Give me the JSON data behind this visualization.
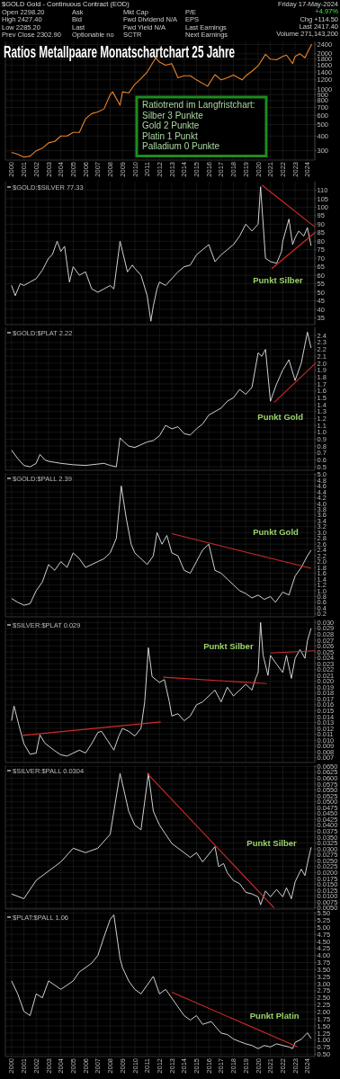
{
  "chart_data": [
    {
      "type": "other",
      "title": "$GOLD Gold - Continuous Contract (EOD)",
      "annotations": [
        "Open 2298.20",
        "High 2427.40",
        "Low 2285.20",
        "Prev Close 2302.90",
        "Ask",
        "Bid",
        "Last",
        "Optionable no",
        "Mkt Cap",
        "Fwd Dividend N/A",
        "Fwd Yield N/A",
        "SCTR",
        "P/E",
        "EPS",
        "Last Earnings",
        "Next Earnings",
        "Friday 17-May-2024",
        "+4.97%",
        "Chg +114.50",
        "Last 2417.40",
        "Volume 271,143,200"
      ]
    },
    {
      "type": "line",
      "title": "Ratios Metallpaare Monatschartchart 25 Jahre",
      "log": true,
      "grid": true,
      "xlim": [
        1999.5,
        2024.6
      ],
      "xticks": [
        2000,
        2001,
        2002,
        2003,
        2004,
        2005,
        2006,
        2007,
        2008,
        2009,
        2010,
        2011,
        2012,
        2013,
        2014,
        2015,
        2016,
        2017,
        2018,
        2019,
        2020,
        2021,
        2022,
        2023,
        2024
      ],
      "ylim": [
        250,
        2550
      ],
      "yticks": [
        300,
        400,
        500,
        600,
        700,
        800,
        900,
        1000,
        1200,
        1400,
        1600,
        1800,
        2000,
        2400
      ],
      "series": [
        {
          "color": "#e8842c",
          "x": [
            2000,
            2000.5,
            2001,
            2001.5,
            2002,
            2002.5,
            2003,
            2003.5,
            2004,
            2004.5,
            2005,
            2005.5,
            2006,
            2006.5,
            2007,
            2007.5,
            2008,
            2008.2,
            2008.8,
            2009,
            2009.5,
            2010,
            2010.5,
            2011,
            2011.7,
            2012,
            2012.5,
            2013,
            2013.5,
            2014,
            2014.5,
            2015,
            2015.9,
            2016.5,
            2017,
            2017.5,
            2018,
            2018.7,
            2019,
            2019.5,
            2020,
            2020.6,
            2021,
            2021.5,
            2022,
            2022.3,
            2022.8,
            2023,
            2023.4,
            2023.8,
            2024,
            2024.35
          ],
          "values": [
            290,
            280,
            265,
            270,
            300,
            315,
            350,
            360,
            400,
            400,
            430,
            430,
            560,
            620,
            640,
            680,
            900,
            950,
            730,
            950,
            930,
            1100,
            1230,
            1400,
            1850,
            1700,
            1600,
            1650,
            1250,
            1300,
            1300,
            1200,
            1060,
            1330,
            1200,
            1250,
            1320,
            1200,
            1300,
            1420,
            1580,
            1980,
            1800,
            1780,
            1900,
            1950,
            1650,
            1900,
            2000,
            1850,
            2050,
            2417
          ]
        }
      ],
      "annotations": [
        "Ratiotrend im Langfristchart:",
        "Silber 3 Punkte",
        "Gold 2 Punkte",
        "Platin 1 Punkt",
        "Palladium 0 Punkte"
      ]
    },
    {
      "type": "line",
      "grid": true,
      "tick_labels": "y",
      "legend": "top left",
      "xlim": [
        1999.5,
        2024.6
      ],
      "xticks": [
        2000,
        2001,
        2002,
        2003,
        2004,
        2005,
        2006,
        2007,
        2008,
        2009,
        2010,
        2011,
        2012,
        2013,
        2014,
        2015,
        2016,
        2017,
        2018,
        2019,
        2020,
        2021,
        2022,
        2023,
        2024
      ],
      "ylim": [
        31,
        115
      ],
      "yticks": [
        35,
        40,
        45,
        50,
        55,
        60,
        65,
        70,
        75,
        80,
        85,
        90,
        95,
        100,
        105,
        110
      ],
      "series": [
        {
          "name": "$GOLD:$SILVER 77.33",
          "color": "#e6e6e6",
          "x": [
            2000,
            2000.3,
            2000.7,
            2001,
            2001.5,
            2002,
            2002.5,
            2003,
            2003.3,
            2003.7,
            2004,
            2004.3,
            2004.7,
            2005,
            2005.5,
            2006,
            2006.5,
            2007,
            2007.5,
            2008,
            2008.3,
            2008.8,
            2009,
            2009.4,
            2009.8,
            2010,
            2010.5,
            2011,
            2011.3,
            2011.5,
            2011.8,
            2012,
            2012.5,
            2013,
            2013.5,
            2014,
            2014.5,
            2015,
            2015.5,
            2016,
            2016.5,
            2017,
            2017.5,
            2018,
            2018.5,
            2019,
            2019.5,
            2020,
            2020.2,
            2020.6,
            2021,
            2021.5,
            2021.9,
            2022,
            2022.5,
            2022.8,
            2023,
            2023.3,
            2023.7,
            2024,
            2024.3
          ],
          "values": [
            54,
            48,
            55,
            54,
            56,
            58,
            63,
            70,
            72,
            80,
            74,
            77,
            56,
            65,
            60,
            62,
            52,
            50,
            52,
            54,
            52,
            80,
            74,
            62,
            66,
            64,
            60,
            48,
            33,
            42,
            52,
            56,
            54,
            58,
            62,
            65,
            66,
            72,
            75,
            78,
            68,
            72,
            75,
            78,
            83,
            90,
            86,
            90,
            112,
            70,
            68,
            67,
            74,
            80,
            93,
            78,
            82,
            86,
            83,
            88,
            77.33
          ]
        },
        {
          "type": "line",
          "color": "#d22b2b",
          "x": [
            2020.3,
            2024.6
          ],
          "values": [
            113,
            88.4
          ]
        },
        {
          "type": "line",
          "color": "#d22b2b",
          "x": [
            2021.1,
            2024.6
          ],
          "values": [
            63.9,
            85
          ]
        }
      ],
      "annotations": [
        "Punkt Silber"
      ]
    },
    {
      "type": "line",
      "grid": true,
      "tick_labels": "y",
      "legend": "top left",
      "xlim": [
        1999.5,
        2024.6
      ],
      "xticks": [
        2000,
        2001,
        2002,
        2003,
        2004,
        2005,
        2006,
        2007,
        2008,
        2009,
        2010,
        2011,
        2012,
        2013,
        2014,
        2015,
        2016,
        2017,
        2018,
        2019,
        2020,
        2021,
        2022,
        2023,
        2024
      ],
      "ylim": [
        0.45,
        2.52
      ],
      "yticks": [
        0.5,
        0.6,
        0.7,
        0.8,
        0.9,
        {
          "value": 1,
          "label": "1.0"
        },
        1.1,
        1.2,
        1.3,
        1.4,
        1.5,
        1.6,
        1.7,
        1.8,
        1.9,
        {
          "value": 2,
          "label": "2.0"
        },
        2.1,
        2.2,
        2.3,
        2.4
      ],
      "series": [
        {
          "name": "$GOLD:$PLAT 2.22",
          "color": "#e6e6e6",
          "x": [
            2000,
            2000.5,
            2001,
            2001.5,
            2002,
            2002.3,
            2002.7,
            2003,
            2004,
            2005,
            2006,
            2007,
            2007.5,
            2008,
            2008.5,
            2008.8,
            2009,
            2009.5,
            2010,
            2010.5,
            2011,
            2011.5,
            2012,
            2012.5,
            2013,
            2013.5,
            2014,
            2014.5,
            2015,
            2015.5,
            2016,
            2016.5,
            2017,
            2017.5,
            2018,
            2018.5,
            2019,
            2019.5,
            2020,
            2020.3,
            2020.6,
            2021,
            2021.5,
            2022,
            2022.5,
            2023,
            2023.5,
            2024,
            2024.3
          ],
          "values": [
            0.74,
            0.62,
            0.52,
            0.5,
            0.55,
            0.68,
            0.6,
            0.58,
            0.55,
            0.53,
            0.52,
            0.54,
            0.55,
            0.52,
            0.5,
            0.92,
            0.88,
            0.8,
            0.78,
            0.82,
            0.86,
            0.88,
            0.95,
            1.1,
            1.05,
            1.08,
            0.98,
            0.96,
            1.05,
            1.12,
            1.25,
            1.3,
            1.35,
            1.45,
            1.5,
            1.62,
            1.55,
            1.65,
            2.15,
            2.1,
            2.2,
            1.45,
            1.7,
            1.9,
            2.05,
            1.75,
            2.0,
            2.45,
            2.22
          ]
        },
        {
          "type": "line",
          "color": "#d22b2b",
          "x": [
            2021.3,
            2024.6
          ],
          "values": [
            1.43,
            1.99
          ]
        }
      ],
      "annotations": [
        "Punkt Gold"
      ]
    },
    {
      "type": "line",
      "grid": true,
      "tick_labels": "y",
      "legend": "top left",
      "xlim": [
        1999.5,
        2024.6
      ],
      "xticks": [
        2000,
        2001,
        2002,
        2003,
        2004,
        2005,
        2006,
        2007,
        2008,
        2009,
        2010,
        2011,
        2012,
        2013,
        2014,
        2015,
        2016,
        2017,
        2018,
        2019,
        2020,
        2021,
        2022,
        2023,
        2024
      ],
      "ylim": [
        0.1,
        5.05
      ],
      "yticks": [
        0.2,
        0.4,
        0.6,
        0.8,
        {
          "value": 1,
          "label": "1.0"
        },
        1.2,
        1.4,
        1.6,
        1.8,
        {
          "value": 2,
          "label": "2.0"
        },
        2.2,
        2.4,
        2.6,
        2.8,
        {
          "value": 3,
          "label": "3.0"
        },
        3.2,
        3.4,
        3.6,
        3.8,
        {
          "value": 4,
          "label": "4.0"
        },
        4.2,
        4.4,
        4.6,
        4.8,
        {
          "value": 5,
          "label": "5.0"
        }
      ],
      "series": [
        {
          "name": "$GOLD:$PALL 2.39",
          "color": "#e6e6e6",
          "x": [
            2000,
            2000.5,
            2001,
            2001.5,
            2002,
            2002.5,
            2003,
            2003.5,
            2004,
            2004.5,
            2005,
            2005.5,
            2006,
            2006.5,
            2007,
            2007.5,
            2008,
            2008.5,
            2008.9,
            2009.3,
            2009.7,
            2010,
            2010.5,
            2011,
            2011.5,
            2011.8,
            2012.2,
            2012.6,
            2013,
            2013.5,
            2014,
            2014.5,
            2015,
            2015.5,
            2016,
            2016.5,
            2017,
            2017.5,
            2018,
            2018.5,
            2019,
            2019.5,
            2020,
            2020.5,
            2021,
            2021.4,
            2022,
            2022.5,
            2023,
            2023.5,
            2024,
            2024.3
          ],
          "values": [
            0.73,
            0.6,
            0.5,
            0.55,
            1.0,
            1.3,
            1.9,
            1.7,
            2.0,
            1.8,
            2.3,
            2.1,
            1.8,
            1.9,
            2.0,
            2.1,
            2.3,
            2.8,
            4.6,
            3.5,
            2.6,
            2.3,
            2.1,
            1.9,
            2.2,
            3.0,
            2.6,
            2.9,
            2.3,
            2.2,
            1.7,
            1.6,
            2.0,
            2.4,
            2.6,
            1.7,
            1.6,
            1.4,
            1.2,
            1.0,
            0.9,
            0.75,
            0.85,
            0.7,
            0.8,
            0.6,
            0.95,
            0.85,
            1.5,
            1.8,
            2.2,
            2.39
          ]
        },
        {
          "type": "line",
          "color": "#d22b2b",
          "x": [
            2013.0,
            2024.3
          ],
          "values": [
            2.96,
            1.77
          ]
        }
      ],
      "annotations": [
        "Punkt Gold"
      ]
    },
    {
      "type": "line",
      "grid": true,
      "tick_labels": "y",
      "legend": "top left",
      "xlim": [
        1999.5,
        2024.6
      ],
      "xticks": [
        2000,
        2001,
        2002,
        2003,
        2004,
        2005,
        2006,
        2007,
        2008,
        2009,
        2010,
        2011,
        2012,
        2013,
        2014,
        2015,
        2016,
        2017,
        2018,
        2019,
        2020,
        2021,
        2022,
        2023,
        2024
      ],
      "ylim": [
        0.0062,
        0.0305
      ],
      "yticks": [
        {
          "value": 0.007,
          "label": "0.007"
        },
        {
          "value": 0.008,
          "label": "0.008"
        },
        {
          "value": 0.009,
          "label": "0.009"
        },
        {
          "value": 0.01,
          "label": "0.010"
        },
        {
          "value": 0.011,
          "label": "0.011"
        },
        {
          "value": 0.012,
          "label": "0.012"
        },
        {
          "value": 0.013,
          "label": "0.013"
        },
        {
          "value": 0.014,
          "label": "0.014"
        },
        {
          "value": 0.015,
          "label": "0.015"
        },
        {
          "value": 0.016,
          "label": "0.016"
        },
        {
          "value": 0.017,
          "label": "0.017"
        },
        {
          "value": 0.018,
          "label": "0.018"
        },
        {
          "value": 0.019,
          "label": "0.019"
        },
        {
          "value": 0.02,
          "label": "0.020"
        },
        {
          "value": 0.021,
          "label": "0.021"
        },
        {
          "value": 0.022,
          "label": "0.022"
        },
        {
          "value": 0.023,
          "label": "0.023"
        },
        {
          "value": 0.024,
          "label": "0.024"
        },
        {
          "value": 0.025,
          "label": "0.025"
        },
        {
          "value": 0.026,
          "label": "0.026"
        },
        {
          "value": 0.027,
          "label": "0.027"
        },
        {
          "value": 0.028,
          "label": "0.028"
        },
        {
          "value": 0.029,
          "label": "0.029"
        },
        {
          "value": 0.03,
          "label": "0.030"
        }
      ],
      "series": [
        {
          "name": "$SILVER:$PLAT 0.029",
          "color": "#e6e6e6",
          "x": [
            2000,
            2000.2,
            2000.6,
            2001,
            2001.5,
            2002,
            2002.3,
            2002.7,
            2003,
            2003.5,
            2004,
            2004.5,
            2005,
            2005.5,
            2006,
            2006.5,
            2007,
            2007.3,
            2007.8,
            2008.3,
            2008.7,
            2009,
            2009.5,
            2010,
            2010.5,
            2010.8,
            2011.1,
            2011.4,
            2011.7,
            2012,
            2012.4,
            2012.8,
            2013,
            2013.5,
            2014,
            2014.5,
            2015,
            2015.5,
            2016,
            2016.5,
            2017,
            2017.5,
            2018,
            2018.5,
            2019,
            2019.5,
            2019.8,
            2020,
            2020.2,
            2020.4,
            2020.8,
            2021,
            2021.5,
            2022,
            2022.3,
            2022.7,
            2023,
            2023.4,
            2023.8,
            2024,
            2024.3
          ],
          "values": [
            0.0133,
            0.0158,
            0.0125,
            0.0094,
            0.0076,
            0.0078,
            0.0109,
            0.0095,
            0.009,
            0.0082,
            0.0075,
            0.0073,
            0.0078,
            0.0083,
            0.0078,
            0.0094,
            0.0113,
            0.0115,
            0.0099,
            0.0083,
            0.0107,
            0.012,
            0.0115,
            0.0107,
            0.012,
            0.0165,
            0.0257,
            0.0208,
            0.0203,
            0.0198,
            0.0203,
            0.0165,
            0.0141,
            0.0145,
            0.0133,
            0.0141,
            0.016,
            0.0165,
            0.0175,
            0.0185,
            0.0165,
            0.019,
            0.0175,
            0.0185,
            0.0195,
            0.0185,
            0.0205,
            0.0215,
            0.03,
            0.0245,
            0.021,
            0.0244,
            0.0229,
            0.0215,
            0.0244,
            0.0205,
            0.0239,
            0.0254,
            0.0239,
            0.0269,
            0.029
          ]
        },
        {
          "type": "line",
          "color": "#d22b2b",
          "x": [
            2000.9,
            2012.1
          ],
          "values": [
            0.0108,
            0.0131
          ]
        },
        {
          "type": "line",
          "color": "#d22b2b",
          "x": [
            2012.3,
            2020.7
          ],
          "values": [
            0.0207,
            0.0196
          ]
        },
        {
          "type": "line",
          "color": "#d22b2b",
          "x": [
            2021.0,
            2024.6
          ],
          "values": [
            0.0248,
            0.0252
          ]
        }
      ],
      "annotations": [
        "Punkt Silber"
      ]
    },
    {
      "type": "line",
      "grid": true,
      "tick_labels": "y",
      "legend": "top left",
      "xlim": [
        1999.5,
        2024.6
      ],
      "xticks": [
        2000,
        2001,
        2002,
        2003,
        2004,
        2005,
        2006,
        2007,
        2008,
        2009,
        2010,
        2011,
        2012,
        2013,
        2014,
        2015,
        2016,
        2017,
        2018,
        2019,
        2020,
        2021,
        2022,
        2023,
        2024
      ],
      "ylim": [
        0.0045,
        0.0655
      ],
      "yticks": [
        {
          "value": 0.005,
          "label": "0.0050"
        },
        {
          "value": 0.0075,
          "label": "0.0075"
        },
        {
          "value": 0.01,
          "label": "0.0100"
        },
        {
          "value": 0.0125,
          "label": "0.0125"
        },
        {
          "value": 0.015,
          "label": "0.0150"
        },
        {
          "value": 0.0175,
          "label": "0.0175"
        },
        {
          "value": 0.02,
          "label": "0.0200"
        },
        {
          "value": 0.0225,
          "label": "0.0225"
        },
        {
          "value": 0.025,
          "label": "0.0250"
        },
        {
          "value": 0.0275,
          "label": "0.0275"
        },
        {
          "value": 0.03,
          "label": "0.0300"
        },
        {
          "value": 0.0325,
          "label": "0.0325"
        },
        {
          "value": 0.035,
          "label": "0.0350"
        },
        {
          "value": 0.0375,
          "label": "0.0375"
        },
        {
          "value": 0.04,
          "label": "0.0400"
        },
        {
          "value": 0.0425,
          "label": "0.0425"
        },
        {
          "value": 0.045,
          "label": "0.0450"
        },
        {
          "value": 0.0475,
          "label": "0.0475"
        },
        {
          "value": 0.05,
          "label": "0.0500"
        },
        {
          "value": 0.0525,
          "label": "0.0525"
        },
        {
          "value": 0.055,
          "label": "0.0550"
        },
        {
          "value": 0.0575,
          "label": "0.0575"
        },
        {
          "value": 0.06,
          "label": "0.0600"
        },
        {
          "value": 0.0625,
          "label": "0.0625"
        },
        {
          "value": 0.065,
          "label": "0.0650"
        }
      ],
      "series": [
        {
          "name": "$SILVER:$PALL 0.0304",
          "color": "#e6e6e6",
          "x": [
            2000,
            2001,
            2002,
            2003,
            2004,
            2005,
            2006,
            2007,
            2008,
            2008.8,
            2009,
            2009.5,
            2010,
            2010.5,
            2011.1,
            2011.5,
            2012,
            2012.5,
            2013,
            2014,
            2014.5,
            2015,
            2015.5,
            2016.2,
            2016.5,
            2016.8,
            2017.2,
            2017.5,
            2018,
            2018.5,
            2019,
            2019.5,
            2020,
            2020.2,
            2020.6,
            2021,
            2021.5,
            2022,
            2022.3,
            2022.7,
            2023,
            2023.5,
            2023.8,
            2024,
            2024.3
          ],
          "values": [
            0.0109,
            0.0089,
            0.0167,
            0.0206,
            0.0245,
            0.0303,
            0.0284,
            0.0303,
            0.0362,
            0.062,
            0.0576,
            0.046,
            0.0401,
            0.0381,
            0.062,
            0.046,
            0.0401,
            0.0362,
            0.0323,
            0.0284,
            0.0264,
            0.0284,
            0.0245,
            0.029,
            0.031,
            0.0225,
            0.0238,
            0.0199,
            0.0166,
            0.0153,
            0.0116,
            0.0109,
            0.0097,
            0.0063,
            0.0122,
            0.0097,
            0.0128,
            0.0097,
            0.0135,
            0.0089,
            0.016,
            0.0214,
            0.0187,
            0.0238,
            0.0307
          ]
        },
        {
          "type": "line",
          "color": "#d22b2b",
          "x": [
            2011.0,
            2021.3
          ],
          "values": [
            0.062,
            0.005
          ]
        }
      ],
      "annotations": [
        "Punkt Silber"
      ]
    },
    {
      "type": "line",
      "grid": true,
      "legend": "top left",
      "xlim": [
        1999.5,
        2024.6
      ],
      "xticks": [
        2000,
        2001,
        2002,
        2003,
        2004,
        2005,
        2006,
        2007,
        2008,
        2009,
        2010,
        2011,
        2012,
        2013,
        2014,
        2015,
        2016,
        2017,
        2018,
        2019,
        2020,
        2021,
        2022,
        2023,
        2024
      ],
      "ylim": [
        0.42,
        5.55
      ],
      "yticks": [
        {
          "value": 0.5,
          "label": "0.50"
        },
        {
          "value": 0.75,
          "label": "0.75"
        },
        {
          "value": 1,
          "label": "1.00"
        },
        {
          "value": 1.25,
          "label": "1.25"
        },
        {
          "value": 1.5,
          "label": "1.50"
        },
        {
          "value": 1.75,
          "label": "1.75"
        },
        {
          "value": 2,
          "label": "2.00"
        },
        {
          "value": 2.25,
          "label": "2.25"
        },
        {
          "value": 2.5,
          "label": "2.50"
        },
        {
          "value": 2.75,
          "label": "2.75"
        },
        {
          "value": 3,
          "label": "3.00"
        },
        {
          "value": 3.25,
          "label": "3.25"
        },
        {
          "value": 3.5,
          "label": "3.50"
        },
        {
          "value": 3.75,
          "label": "3.75"
        },
        {
          "value": 4,
          "label": "4.00"
        },
        {
          "value": 4.25,
          "label": "4.25"
        },
        {
          "value": 4.5,
          "label": "4.50"
        },
        {
          "value": 4.75,
          "label": "4.75"
        },
        {
          "value": 5,
          "label": "5.00"
        },
        {
          "value": 5.25,
          "label": "5.25"
        },
        {
          "value": 5.5,
          "label": "5.50"
        }
      ],
      "series": [
        {
          "name": "$PLAT:$PALL 1.06",
          "color": "#e6e6e6",
          "x": [
            2000,
            2000.5,
            2001,
            2001.5,
            2002,
            2002.5,
            2003,
            2003.5,
            2004,
            2005,
            2005.5,
            2006,
            2006.5,
            2007,
            2007.5,
            2008,
            2008.3,
            2008.8,
            2009,
            2009.5,
            2010,
            2010.5,
            2011,
            2011.5,
            2012,
            2012.5,
            2013,
            2013.5,
            2014,
            2014.5,
            2015,
            2015.5,
            2016.2,
            2016.6,
            2017,
            2017.5,
            2018,
            2018.5,
            2019,
            2019.5,
            2020,
            2020.5,
            2021,
            2021.5,
            2022,
            2022.5,
            2022.8,
            2023,
            2023.5,
            2024,
            2024.3
          ],
          "values": [
            3.1,
            2.64,
            2.02,
            1.87,
            2.64,
            2.5,
            3.1,
            2.95,
            2.8,
            3.1,
            3.42,
            3.57,
            3.73,
            4.0,
            4.66,
            5.28,
            5.44,
            3.89,
            3.57,
            3.1,
            2.8,
            2.64,
            2.95,
            3.26,
            2.64,
            2.8,
            2.49,
            2.18,
            1.87,
            1.71,
            1.87,
            1.56,
            1.66,
            1.45,
            1.25,
            1.2,
            1.04,
            0.95,
            0.87,
            0.81,
            0.7,
            0.81,
            0.76,
            0.87,
            0.81,
            0.76,
            0.7,
            0.92,
            1.03,
            1.26,
            1.06
          ]
        },
        {
          "type": "line",
          "color": "#d22b2b",
          "x": [
            2013.0,
            2023.2
          ],
          "values": [
            2.7,
            0.76
          ]
        }
      ],
      "annotations": [
        "Punkt Platin"
      ]
    }
  ]
}
